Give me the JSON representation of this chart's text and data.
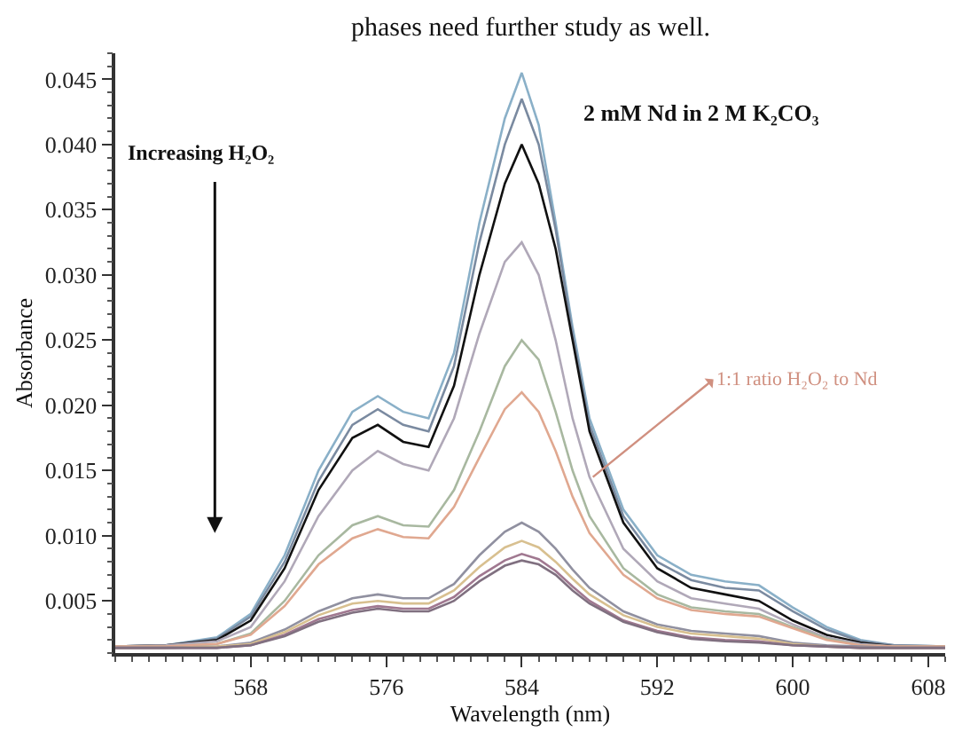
{
  "chart_data": {
    "type": "line",
    "xlabel": "Wavelength (nm)",
    "ylabel": "Absorbance",
    "annotations": [
      "phases need further study as well.",
      "Increasing H₂O₂",
      "2 mM Nd in 2 M K₂CO₃",
      {
        "text": "1:1 ratio H₂O₂ to Nd",
        "x": 588.2,
        "y": 0.0145
      }
    ],
    "x": [
      560,
      563,
      566,
      568,
      570,
      572,
      574,
      575.5,
      577,
      578.5,
      580,
      581.5,
      583,
      584,
      585,
      586,
      587,
      588,
      590,
      592,
      594,
      596,
      598,
      600,
      602,
      604,
      606,
      609
    ],
    "xlim": [
      560,
      609
    ],
    "xticks": [
      568,
      576,
      584,
      592,
      600,
      608
    ],
    "ylim": [
      0.001,
      0.047
    ],
    "yticks": [
      0.005,
      {
        "value": 0.01,
        "label": "0.010"
      },
      0.015,
      {
        "value": 0.02,
        "label": "0.020"
      },
      0.025,
      {
        "value": 0.03,
        "label": "0.030"
      },
      0.035,
      {
        "value": 0.04,
        "label": "0.040"
      },
      0.045
    ],
    "marker": "none",
    "line_style": "solid",
    "series": [
      {
        "color": "#8ab0c8",
        "values": [
          0.0015,
          0.0016,
          0.0022,
          0.004,
          0.0085,
          0.015,
          0.0195,
          0.0207,
          0.0195,
          0.019,
          0.024,
          0.034,
          0.042,
          0.0455,
          0.0415,
          0.034,
          0.026,
          0.019,
          0.012,
          0.0085,
          0.007,
          0.0065,
          0.0062,
          0.0045,
          0.003,
          0.002,
          0.0016,
          0.0015
        ]
      },
      {
        "color": "#7a8aa0",
        "values": [
          0.0015,
          0.0016,
          0.0021,
          0.0038,
          0.008,
          0.0142,
          0.0185,
          0.0197,
          0.0185,
          0.018,
          0.023,
          0.0325,
          0.04,
          0.0435,
          0.04,
          0.0335,
          0.0255,
          0.0185,
          0.0115,
          0.008,
          0.0066,
          0.006,
          0.0058,
          0.0042,
          0.0028,
          0.0019,
          0.0016,
          0.0015
        ]
      },
      {
        "color": "#111111",
        "values": [
          0.0015,
          0.0016,
          0.002,
          0.0035,
          0.0075,
          0.0135,
          0.0175,
          0.0185,
          0.0172,
          0.0168,
          0.0215,
          0.03,
          0.037,
          0.04,
          0.037,
          0.032,
          0.025,
          0.018,
          0.011,
          0.0075,
          0.006,
          0.0055,
          0.005,
          0.0035,
          0.0024,
          0.0018,
          0.0015,
          0.0015
        ]
      },
      {
        "color": "#b0a8b8",
        "values": [
          0.0015,
          0.0016,
          0.0019,
          0.003,
          0.0065,
          0.0115,
          0.015,
          0.0165,
          0.0155,
          0.015,
          0.019,
          0.0255,
          0.031,
          0.0325,
          0.03,
          0.025,
          0.019,
          0.0145,
          0.009,
          0.0065,
          0.0052,
          0.0048,
          0.0044,
          0.0032,
          0.0022,
          0.0017,
          0.0015,
          0.0015
        ]
      },
      {
        "color": "#a8b8a0",
        "values": [
          0.0015,
          0.0015,
          0.0017,
          0.0025,
          0.005,
          0.0085,
          0.0108,
          0.0115,
          0.0108,
          0.0107,
          0.0135,
          0.018,
          0.023,
          0.025,
          0.0235,
          0.0195,
          0.015,
          0.0115,
          0.0075,
          0.0055,
          0.0045,
          0.0042,
          0.004,
          0.003,
          0.0021,
          0.0016,
          0.0015,
          0.0015
        ]
      },
      {
        "color": "#e0a890",
        "values": [
          0.0015,
          0.0015,
          0.0017,
          0.0024,
          0.0046,
          0.0078,
          0.0098,
          0.0105,
          0.0099,
          0.0098,
          0.0122,
          0.016,
          0.0197,
          0.021,
          0.0195,
          0.0165,
          0.013,
          0.0102,
          0.007,
          0.0052,
          0.0043,
          0.004,
          0.0038,
          0.0029,
          0.002,
          0.0016,
          0.0015,
          0.0015
        ]
      },
      {
        "color": "#9090a0",
        "values": [
          0.0014,
          0.0014,
          0.0015,
          0.0018,
          0.0028,
          0.0042,
          0.0052,
          0.0055,
          0.0052,
          0.0052,
          0.0063,
          0.0085,
          0.0103,
          0.011,
          0.0103,
          0.009,
          0.0074,
          0.006,
          0.0042,
          0.0032,
          0.0027,
          0.0025,
          0.0023,
          0.0018,
          0.0016,
          0.0015,
          0.0014,
          0.0014
        ]
      },
      {
        "color": "#d8c090",
        "values": [
          0.0014,
          0.0014,
          0.0015,
          0.0017,
          0.0026,
          0.0039,
          0.0048,
          0.005,
          0.0048,
          0.0048,
          0.0058,
          0.0076,
          0.0091,
          0.0096,
          0.0091,
          0.008,
          0.0067,
          0.0055,
          0.0039,
          0.003,
          0.0025,
          0.0023,
          0.0021,
          0.0017,
          0.0015,
          0.0014,
          0.0014,
          0.0014
        ]
      },
      {
        "color": "#a07890",
        "values": [
          0.0014,
          0.0014,
          0.0014,
          0.0016,
          0.0024,
          0.0036,
          0.0043,
          0.0046,
          0.0044,
          0.0044,
          0.0053,
          0.0069,
          0.0081,
          0.0086,
          0.0082,
          0.0073,
          0.0061,
          0.005,
          0.0035,
          0.0027,
          0.0022,
          0.002,
          0.0019,
          0.0016,
          0.0015,
          0.0014,
          0.0014,
          0.0014
        ]
      },
      {
        "color": "#807080",
        "values": [
          0.0014,
          0.0014,
          0.0014,
          0.0016,
          0.0023,
          0.0034,
          0.0041,
          0.0044,
          0.0042,
          0.0042,
          0.005,
          0.0065,
          0.0077,
          0.0081,
          0.0078,
          0.007,
          0.0058,
          0.0048,
          0.0034,
          0.0026,
          0.0021,
          0.0019,
          0.0018,
          0.0016,
          0.0015,
          0.0014,
          0.0014,
          0.0014
        ]
      }
    ]
  }
}
